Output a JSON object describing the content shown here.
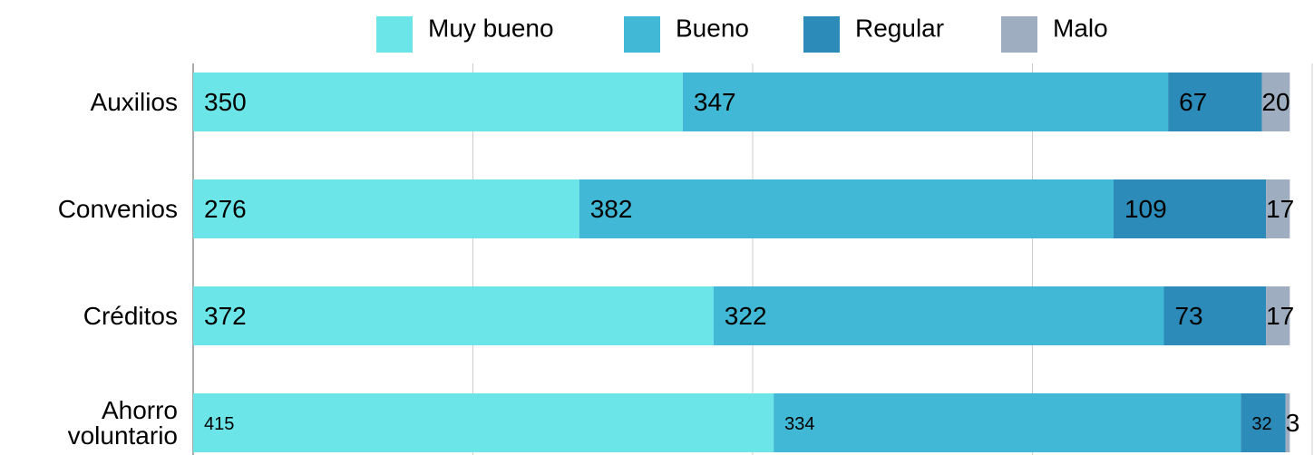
{
  "chart_data": {
    "type": "stacked-bar-horizontal",
    "categories": [
      "Auxilios",
      "Convenios",
      "Créditos",
      "Ahorro voluntario"
    ],
    "series": [
      {
        "name": "Muy bueno",
        "color": "#6ce5e8",
        "values": [
          350,
          276,
          372,
          415
        ]
      },
      {
        "name": "Bueno",
        "color": "#41b8d5",
        "values": [
          347,
          382,
          322,
          334
        ]
      },
      {
        "name": "Regular",
        "color": "#2d8bba",
        "values": [
          67,
          109,
          73,
          32
        ]
      },
      {
        "name": "Malo",
        "color": "#9eadc0",
        "values": [
          20,
          17,
          17,
          3
        ]
      }
    ],
    "xlim": [
      0,
      800
    ],
    "xticks": [
      0,
      200,
      400,
      600,
      800
    ],
    "grid": true,
    "legend": "top"
  }
}
